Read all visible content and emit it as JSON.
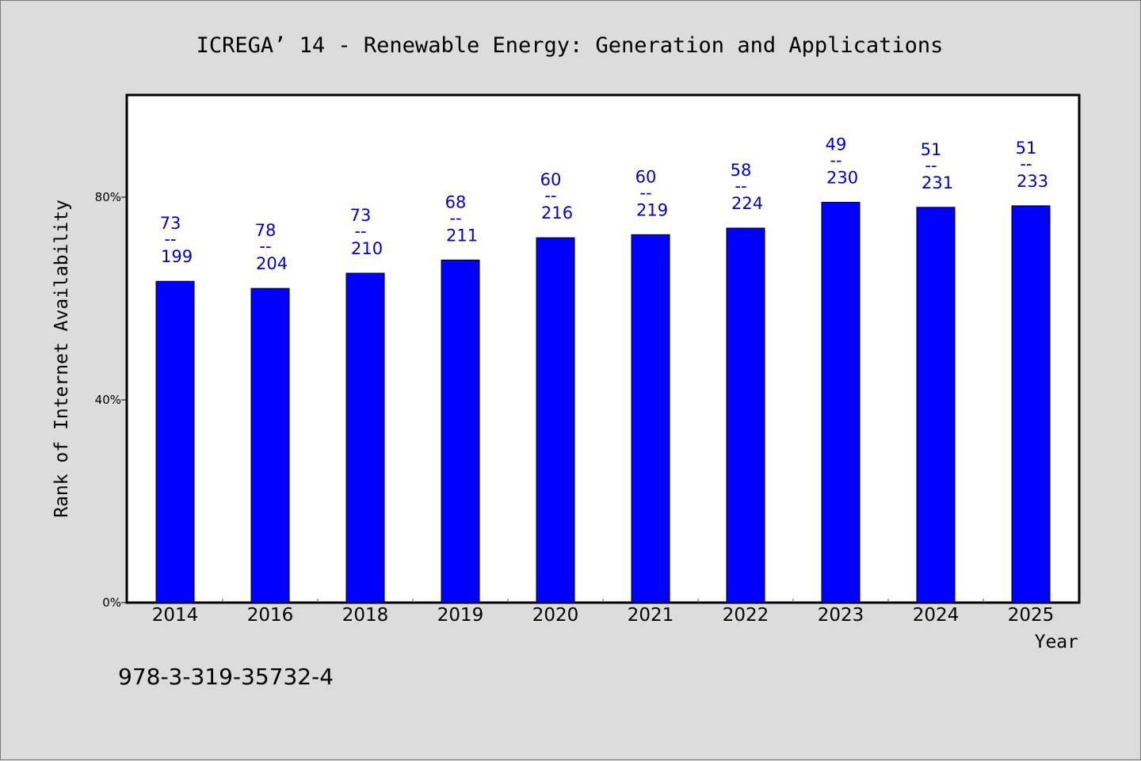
{
  "chart_data": {
    "type": "bar",
    "title": "ICREGA’ 14 - Renewable Energy: Generation and Applications",
    "xlabel": "Year",
    "ylabel": "Rank of Internet Availability",
    "ylim": [
      0,
      100
    ],
    "yticks": [
      {
        "value": 0,
        "label": "0%"
      },
      {
        "value": 40,
        "label": "40%"
      },
      {
        "value": 80,
        "label": "80%"
      }
    ],
    "categories": [
      "2014",
      "2016",
      "2018",
      "2019",
      "2020",
      "2021",
      "2022",
      "2023",
      "2024",
      "2025"
    ],
    "values": [
      63.4,
      62.0,
      65.0,
      67.6,
      72.0,
      72.6,
      73.9,
      79.0,
      78.0,
      78.3
    ],
    "labels_top": [
      "73",
      "78",
      "73",
      "68",
      "60",
      "60",
      "58",
      "49",
      "51",
      "51"
    ],
    "labels_sep": [
      "--",
      "--",
      "--",
      "--",
      "--",
      "--",
      "--",
      "--",
      "--",
      "--"
    ],
    "labels_bottom": [
      "199",
      "204",
      "210",
      "211",
      "216",
      "219",
      "224",
      "230",
      "231",
      "233"
    ],
    "bar_color": "#0000ff",
    "label_color": "#0000c8",
    "grid": false,
    "legend": "none"
  },
  "footer": {
    "isbn": "978-3-319-35732-4"
  }
}
